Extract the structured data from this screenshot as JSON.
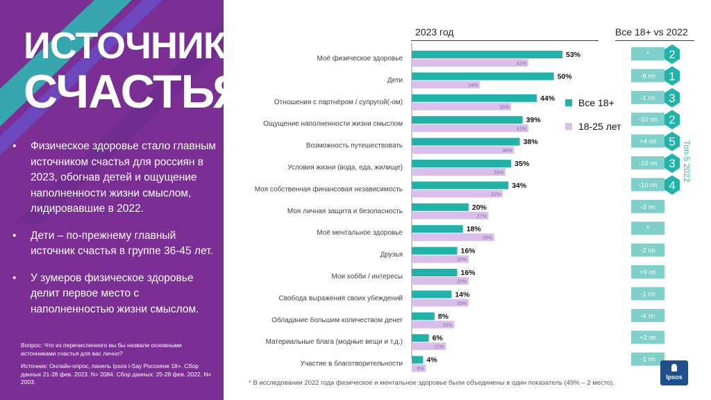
{
  "title": {
    "line1": "ИСТОЧНИКИ",
    "line2": "СЧАСТЬЯ"
  },
  "bullets": [
    "Физическое здоровье стало главным источником счастья для россиян в 2023, обогнав детей и ощущение наполненности жизни смыслом, лидировавшие в 2022.",
    "Дети –  по-прежнему главный источник счастья в группе 36-45 лет.",
    "У зумеров физическое здоровье делит первое место с наполненностью жизни смыслом."
  ],
  "bullet_symbol": "•",
  "notes": {
    "question": "Вопрос: Что из перечисленного вы бы назвали основными источниками счастья для вас лично?",
    "source": "Источник: Онлайн-опрос, панель Ipsos i-Say Россияне 18+. Сбор данных 21-28 фев. 2023. N= 2084. Сбор данных: 25-28 фев. 2022. N= 2003."
  },
  "headers": {
    "year": "2023 год",
    "compare": "Все 18+ vs 2022",
    "top5": "Топ-5 2022"
  },
  "legend": {
    "all": "Все 18+",
    "young": "18-25 лет"
  },
  "footnote": "* В исследовании 2022 года физическое и ментальное здоровье были объединены в один показатель (49% – 2 место).",
  "logo": "Ipsos",
  "colors": {
    "all": "#1fb3a9",
    "young": "#d9bfea",
    "purple": "#7b2f94",
    "badge": "#7fd0cb",
    "diamond": "#1fb3a9"
  },
  "chart_data": {
    "type": "bar",
    "orientation": "horizontal",
    "xlim": [
      0,
      53
    ],
    "categories": [
      "Моё физическое здоровье",
      "Дети",
      "Отношения с партнёром / супругой(-ом)",
      "Ощущение наполненности жизни смыслом",
      "Возможность путешествовать",
      "Условия жизни (вода, еда, жилище)",
      "Моя собственная финансовая независимость",
      "Моя личная защита и безопасность",
      "Моё ментальное здоровье",
      "Друзья",
      "Мои хобби / интересы",
      "Свобода выражения своих убеждений",
      "Обладание большим количеством денег",
      "Материальные блага (модные вещи и т.д.)",
      "Участие в благотворительности"
    ],
    "series": [
      {
        "name": "Все 18+",
        "values": [
          53,
          50,
          44,
          39,
          38,
          35,
          34,
          20,
          18,
          16,
          16,
          14,
          8,
          6,
          4
        ]
      },
      {
        "name": "18-25 лет",
        "values": [
          41,
          24,
          35,
          41,
          36,
          33,
          32,
          27,
          29,
          20,
          20,
          20,
          15,
          12,
          5
        ]
      }
    ],
    "comparison_vs_2022": [
      "*",
      "-8 пп",
      "-1 пп",
      "-10 пп",
      "+4 пп",
      "-10 пп",
      "-10 пп",
      "-3 пп",
      "*",
      "-2 пп",
      "+9 пп",
      "-1 пп",
      "-4 пп",
      "+2 пп",
      "-1 пп"
    ],
    "top5_rank_2022": [
      2,
      1,
      3,
      2,
      5,
      3,
      4,
      null,
      null,
      null,
      null,
      null,
      null,
      null,
      null
    ]
  }
}
